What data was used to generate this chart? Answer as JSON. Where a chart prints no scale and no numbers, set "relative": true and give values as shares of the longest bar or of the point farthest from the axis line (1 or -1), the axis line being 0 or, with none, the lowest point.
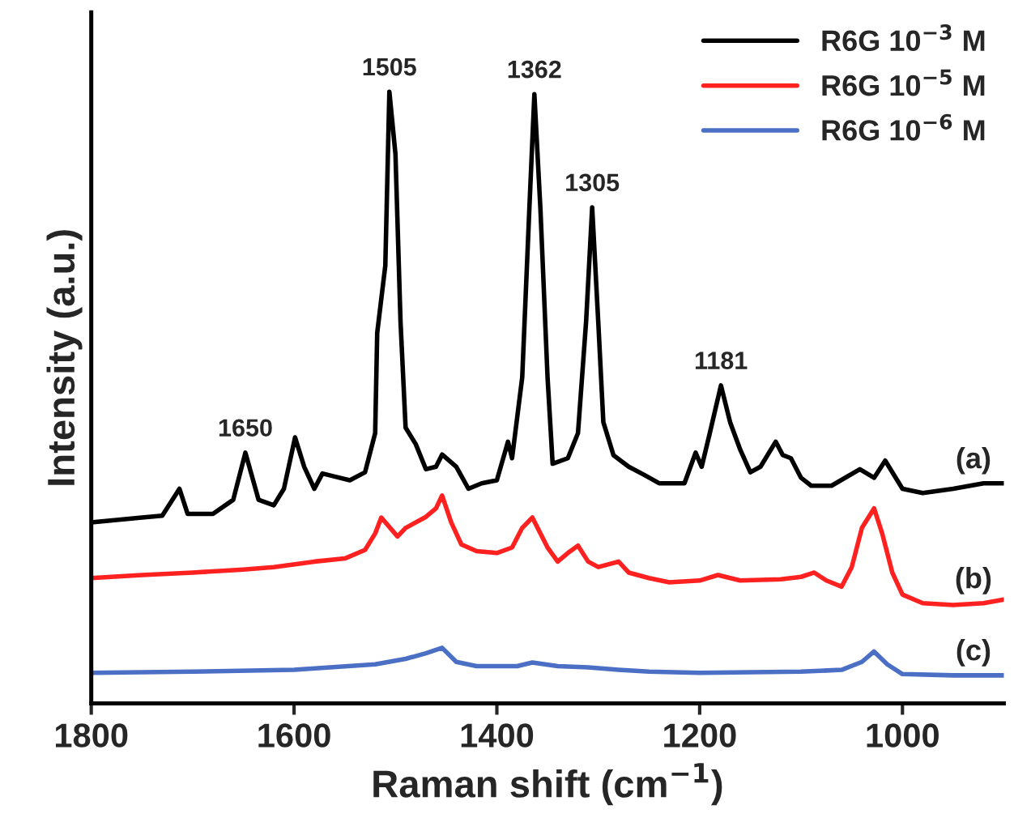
{
  "chart_data": {
    "type": "line",
    "relative": true,
    "xlabel": "Raman shift (cm$^{−1}$)",
    "ylabel": "Intensity (a.u.)",
    "xlim": [
      1800,
      900
    ],
    "xticks": [
      1800,
      1600,
      1400,
      1200,
      1000
    ],
    "grid": false,
    "legend": "top right",
    "marker": "none",
    "line_style": "solid",
    "series": [
      {
        "name": "R6G 10$^{−3}$ M",
        "color": "#000000",
        "x": [
          1800,
          1750,
          1730,
          1713,
          1705,
          1680,
          1660,
          1648,
          1635,
          1620,
          1610,
          1599,
          1590,
          1580,
          1572,
          1560,
          1545,
          1530,
          1520,
          1518,
          1510,
          1506,
          1500,
          1495,
          1490,
          1480,
          1470,
          1460,
          1454,
          1440,
          1428,
          1415,
          1400,
          1389,
          1385,
          1375,
          1368,
          1363,
          1357,
          1350,
          1345,
          1330,
          1320,
          1312,
          1306,
          1300,
          1295,
          1285,
          1270,
          1255,
          1240,
          1215,
          1204,
          1198,
          1190,
          1179,
          1170,
          1160,
          1150,
          1140,
          1125,
          1118,
          1110,
          1100,
          1090,
          1070,
          1042,
          1028,
          1017,
          1000,
          980,
          950,
          920,
          900
        ],
        "values": [
          0.296,
          0.304,
          0.307,
          0.351,
          0.31,
          0.31,
          0.333,
          0.41,
          0.333,
          0.324,
          0.351,
          0.435,
          0.387,
          0.351,
          0.376,
          0.371,
          0.365,
          0.378,
          0.442,
          0.606,
          0.716,
          1.0,
          0.898,
          0.624,
          0.451,
          0.424,
          0.383,
          0.387,
          0.407,
          0.387,
          0.351,
          0.36,
          0.365,
          0.428,
          0.401,
          0.533,
          0.807,
          0.996,
          0.807,
          0.533,
          0.392,
          0.401,
          0.442,
          0.624,
          0.811,
          0.624,
          0.46,
          0.406,
          0.387,
          0.374,
          0.36,
          0.36,
          0.41,
          0.387,
          0.442,
          0.52,
          0.46,
          0.415,
          0.378,
          0.387,
          0.428,
          0.406,
          0.401,
          0.369,
          0.356,
          0.356,
          0.383,
          0.369,
          0.397,
          0.351,
          0.344,
          0.351,
          0.36,
          0.36
        ]
      },
      {
        "name": "R6G 10$^{−5}$ M",
        "color": "#ff2020",
        "x": [
          1800,
          1750,
          1700,
          1650,
          1620,
          1580,
          1550,
          1530,
          1520,
          1514,
          1498,
          1490,
          1470,
          1460,
          1454,
          1445,
          1435,
          1420,
          1400,
          1385,
          1375,
          1365,
          1350,
          1340,
          1330,
          1320,
          1310,
          1300,
          1280,
          1270,
          1250,
          1230,
          1200,
          1182,
          1160,
          1120,
          1100,
          1087,
          1075,
          1060,
          1050,
          1040,
          1028,
          1020,
          1010,
          1000,
          980,
          950,
          920,
          900
        ],
        "values": [
          0.205,
          0.21,
          0.214,
          0.219,
          0.223,
          0.232,
          0.237,
          0.251,
          0.278,
          0.304,
          0.273,
          0.287,
          0.305,
          0.319,
          0.34,
          0.296,
          0.26,
          0.249,
          0.246,
          0.255,
          0.287,
          0.304,
          0.255,
          0.232,
          0.246,
          0.258,
          0.232,
          0.223,
          0.232,
          0.214,
          0.205,
          0.198,
          0.201,
          0.21,
          0.201,
          0.203,
          0.207,
          0.214,
          0.201,
          0.191,
          0.223,
          0.287,
          0.319,
          0.278,
          0.214,
          0.178,
          0.164,
          0.161,
          0.164,
          0.17
        ]
      },
      {
        "name": "R6G 10$^{−6}$ M",
        "color": "#4a6fc4",
        "x": [
          1800,
          1700,
          1600,
          1520,
          1490,
          1470,
          1454,
          1440,
          1420,
          1380,
          1365,
          1340,
          1310,
          1280,
          1250,
          1200,
          1100,
          1060,
          1040,
          1028,
          1015,
          1000,
          950,
          900
        ],
        "values": [
          0.05,
          0.052,
          0.055,
          0.064,
          0.073,
          0.082,
          0.091,
          0.068,
          0.061,
          0.061,
          0.067,
          0.061,
          0.059,
          0.055,
          0.052,
          0.05,
          0.052,
          0.055,
          0.068,
          0.085,
          0.064,
          0.048,
          0.046,
          0.046
        ]
      }
    ],
    "annotations": [
      {
        "text": "1650",
        "x": 1648,
        "y": 0.41
      },
      {
        "text": "1505",
        "x": 1506,
        "y": 1.0
      },
      {
        "text": "1362",
        "x": 1363,
        "y": 0.996
      },
      {
        "text": "1305",
        "x": 1306,
        "y": 0.811
      },
      {
        "text": "1181",
        "x": 1179,
        "y": 0.52
      },
      {
        "text": "(a)",
        "x": 930,
        "y": 0.36
      },
      {
        "text": "(b)",
        "x": 930,
        "y": 0.164
      },
      {
        "text": "(c)",
        "x": 930,
        "y": 0.046
      }
    ]
  }
}
